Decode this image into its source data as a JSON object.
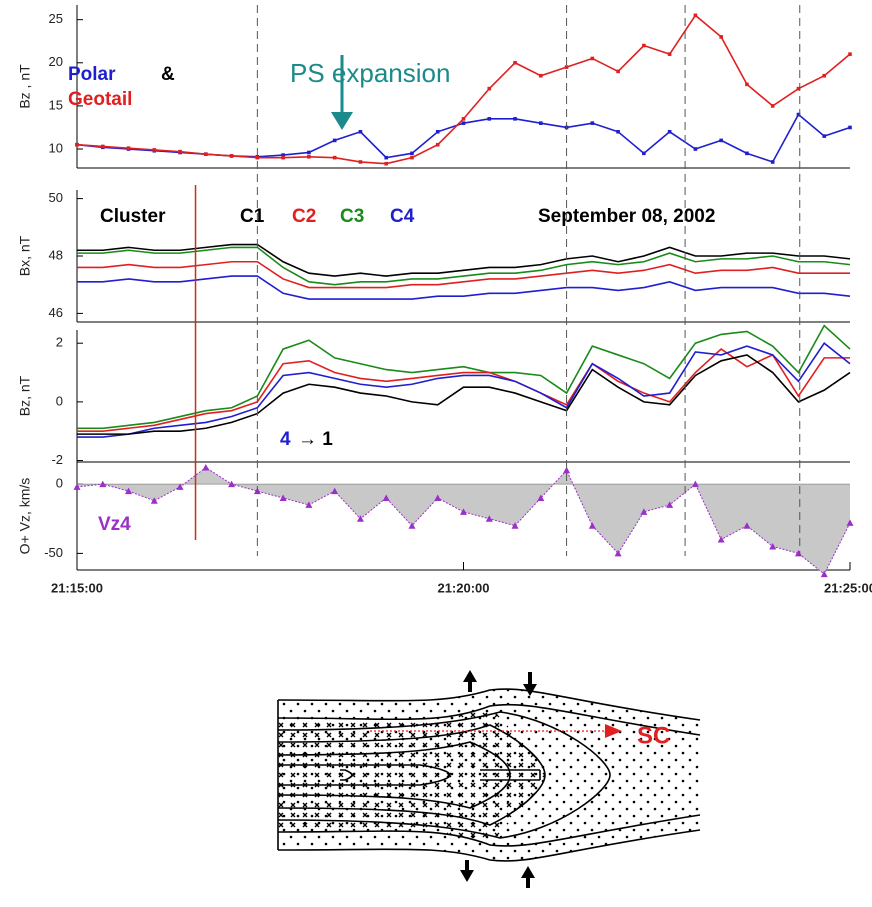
{
  "chart_data": [
    {
      "type": "line",
      "ylabel": "Bz , nT",
      "xlim": [
        "21:15:00",
        "21:25:00"
      ],
      "ylim": [
        7.8,
        26.7
      ],
      "yticks": [
        10,
        15,
        20,
        25
      ],
      "markers": true,
      "legend_joiner": "&",
      "annotations": [
        "PS expansion"
      ],
      "annotation_colors": [
        "#1a8a8a"
      ],
      "x": [
        "21:15:00",
        "21:15:20",
        "21:15:40",
        "21:16:00",
        "21:16:20",
        "21:16:40",
        "21:17:00",
        "21:17:20",
        "21:17:40",
        "21:18:00",
        "21:18:20",
        "21:18:40",
        "21:19:00",
        "21:19:20",
        "21:19:40",
        "21:20:00",
        "21:20:20",
        "21:20:40",
        "21:21:00",
        "21:21:20",
        "21:21:40",
        "21:22:00",
        "21:22:20",
        "21:22:40",
        "21:23:00",
        "21:23:20",
        "21:23:40",
        "21:24:00",
        "21:24:20",
        "21:24:40",
        "21:25:00"
      ],
      "series": [
        {
          "name": "Polar",
          "color": "#1f1fd0",
          "values": [
            10.5,
            10.2,
            10.0,
            9.8,
            9.6,
            9.4,
            9.2,
            9.1,
            9.3,
            9.6,
            11.0,
            12.0,
            9.0,
            9.5,
            12.0,
            13.0,
            13.5,
            13.5,
            13.0,
            12.5,
            13.0,
            12.0,
            9.5,
            12.0,
            10.0,
            11.0,
            9.5,
            8.5,
            14.0,
            11.5,
            12.5
          ]
        },
        {
          "name": "Geotail",
          "color": "#e02020",
          "values": [
            10.5,
            10.3,
            10.1,
            9.9,
            9.7,
            9.4,
            9.2,
            9.0,
            9.0,
            9.1,
            9.0,
            8.5,
            8.3,
            9.0,
            10.5,
            13.5,
            17.0,
            20.0,
            18.5,
            19.5,
            20.5,
            19.0,
            22.0,
            21.0,
            25.5,
            23.0,
            17.5,
            15.0,
            17.0,
            18.5,
            21.0
          ]
        }
      ]
    },
    {
      "type": "line",
      "ylabel": "Bx, nT",
      "xlim": [
        "21:15:00",
        "21:25:00"
      ],
      "ylim": [
        45.7,
        50.3
      ],
      "yticks": [
        46,
        48,
        50
      ],
      "annotations": [
        "Cluster",
        "September  08,  2002"
      ],
      "annotation_colors": [
        "#000000",
        "#000000"
      ],
      "x": [
        "21:15:00",
        "21:15:20",
        "21:15:40",
        "21:16:00",
        "21:16:20",
        "21:16:40",
        "21:17:00",
        "21:17:20",
        "21:17:40",
        "21:18:00",
        "21:18:20",
        "21:18:40",
        "21:19:00",
        "21:19:20",
        "21:19:40",
        "21:20:00",
        "21:20:20",
        "21:20:40",
        "21:21:00",
        "21:21:20",
        "21:21:40",
        "21:22:00",
        "21:22:20",
        "21:22:40",
        "21:23:00",
        "21:23:20",
        "21:23:40",
        "21:24:00",
        "21:24:20",
        "21:24:40",
        "21:25:00"
      ],
      "series": [
        {
          "name": "C1",
          "color": "#000000",
          "values": [
            48.2,
            48.2,
            48.3,
            48.2,
            48.2,
            48.3,
            48.4,
            48.4,
            47.8,
            47.4,
            47.3,
            47.4,
            47.3,
            47.4,
            47.4,
            47.5,
            47.6,
            47.6,
            47.7,
            47.9,
            48.0,
            47.8,
            48.0,
            48.3,
            48.0,
            48.0,
            48.1,
            48.1,
            48.0,
            48.0,
            47.9
          ]
        },
        {
          "name": "C2",
          "color": "#e02020",
          "values": [
            47.6,
            47.6,
            47.7,
            47.6,
            47.6,
            47.7,
            47.8,
            47.8,
            47.2,
            46.9,
            46.9,
            46.9,
            46.9,
            47.0,
            47.0,
            47.1,
            47.2,
            47.2,
            47.3,
            47.4,
            47.5,
            47.4,
            47.5,
            47.7,
            47.4,
            47.5,
            47.5,
            47.6,
            47.4,
            47.4,
            47.4
          ]
        },
        {
          "name": "C3",
          "color": "#1a8a1a",
          "values": [
            48.1,
            48.1,
            48.2,
            48.1,
            48.1,
            48.2,
            48.3,
            48.3,
            47.6,
            47.1,
            47.0,
            47.1,
            47.1,
            47.2,
            47.2,
            47.3,
            47.4,
            47.4,
            47.5,
            47.7,
            47.8,
            47.7,
            47.8,
            48.1,
            47.8,
            47.9,
            47.9,
            48.0,
            47.8,
            47.8,
            47.7
          ]
        },
        {
          "name": "C4",
          "color": "#1f1fd0",
          "values": [
            47.1,
            47.1,
            47.2,
            47.1,
            47.1,
            47.2,
            47.3,
            47.3,
            46.7,
            46.5,
            46.5,
            46.5,
            46.5,
            46.5,
            46.6,
            46.6,
            46.7,
            46.7,
            46.8,
            46.9,
            46.9,
            46.8,
            46.9,
            47.1,
            46.8,
            46.9,
            46.9,
            46.9,
            46.7,
            46.7,
            46.6
          ]
        }
      ]
    },
    {
      "type": "line",
      "ylabel": "Bz, nT",
      "xlim": [
        "21:15:00",
        "21:25:00"
      ],
      "ylim": [
        -2.05,
        2.45
      ],
      "yticks": [
        -2,
        0,
        2
      ],
      "annotations": [
        "4",
        "→ 1"
      ],
      "annotation_colors": [
        "#1f1fd0",
        "#000000"
      ],
      "x": [
        "21:15:00",
        "21:15:20",
        "21:15:40",
        "21:16:00",
        "21:16:20",
        "21:16:40",
        "21:17:00",
        "21:17:20",
        "21:17:40",
        "21:18:00",
        "21:18:20",
        "21:18:40",
        "21:19:00",
        "21:19:20",
        "21:19:40",
        "21:20:00",
        "21:20:20",
        "21:20:40",
        "21:21:00",
        "21:21:20",
        "21:21:40",
        "21:22:00",
        "21:22:20",
        "21:22:40",
        "21:23:00",
        "21:23:20",
        "21:23:40",
        "21:24:00",
        "21:24:20",
        "21:24:40",
        "21:25:00"
      ],
      "series": [
        {
          "name": "C3",
          "color": "#1a8a1a",
          "values": [
            -0.9,
            -0.9,
            -0.8,
            -0.7,
            -0.5,
            -0.3,
            -0.2,
            0.2,
            1.8,
            2.1,
            1.5,
            1.3,
            1.1,
            1.0,
            1.1,
            1.2,
            1.0,
            1.0,
            0.9,
            0.3,
            1.9,
            1.6,
            1.3,
            0.8,
            2.0,
            2.3,
            2.4,
            1.9,
            1.0,
            2.6,
            1.8
          ]
        },
        {
          "name": "C2",
          "color": "#e02020",
          "values": [
            -1.0,
            -1.0,
            -0.9,
            -0.8,
            -0.6,
            -0.4,
            -0.3,
            0.0,
            1.3,
            1.4,
            1.0,
            0.8,
            0.7,
            0.8,
            0.9,
            1.0,
            1.0,
            0.7,
            0.3,
            -0.1,
            1.3,
            0.7,
            0.3,
            0.0,
            1.0,
            1.8,
            1.2,
            1.6,
            0.2,
            1.5,
            1.5
          ]
        },
        {
          "name": "C4",
          "color": "#1f1fd0",
          "values": [
            -1.2,
            -1.2,
            -1.1,
            -0.9,
            -0.8,
            -0.7,
            -0.5,
            -0.2,
            0.9,
            1.0,
            0.8,
            0.6,
            0.5,
            0.6,
            0.8,
            0.9,
            0.9,
            0.7,
            0.3,
            -0.2,
            1.3,
            0.8,
            0.2,
            0.3,
            1.7,
            1.6,
            1.9,
            1.6,
            0.7,
            2.0,
            1.3
          ]
        },
        {
          "name": "C1",
          "color": "#000000",
          "values": [
            -1.1,
            -1.1,
            -1.1,
            -1.0,
            -1.0,
            -0.9,
            -0.7,
            -0.4,
            0.3,
            0.6,
            0.5,
            0.3,
            0.2,
            0.0,
            -0.1,
            0.5,
            0.5,
            0.3,
            0.0,
            -0.3,
            1.1,
            0.5,
            0.0,
            -0.1,
            0.9,
            1.4,
            1.6,
            1.0,
            0.0,
            0.4,
            1.0
          ]
        }
      ]
    },
    {
      "type": "area",
      "ylabel": "O+ Vz, km/s",
      "xlim": [
        "21:15:00",
        "21:25:00"
      ],
      "ylim": [
        -62,
        16
      ],
      "yticks": [
        -50,
        0
      ],
      "xticks": [
        "21:15:00",
        "21:20:00",
        "21:25:00"
      ],
      "markers": true,
      "fill": "#c8c8c8",
      "vlines": [
        "21:17:20",
        "21:21:20",
        "21:22:52",
        "21:24:21"
      ],
      "red_line": "21:16:32",
      "x": [
        "21:15:00",
        "21:15:20",
        "21:15:40",
        "21:16:00",
        "21:16:20",
        "21:16:40",
        "21:17:00",
        "21:17:20",
        "21:17:40",
        "21:18:00",
        "21:18:20",
        "21:18:40",
        "21:19:00",
        "21:19:20",
        "21:19:40",
        "21:20:00",
        "21:20:20",
        "21:20:40",
        "21:21:00",
        "21:21:20",
        "21:21:40",
        "21:22:00",
        "21:22:20",
        "21:22:40",
        "21:23:00",
        "21:23:20",
        "21:23:40",
        "21:24:00",
        "21:24:20",
        "21:24:40",
        "21:25:00"
      ],
      "series": [
        {
          "name": "Vz4",
          "color": "#9a30c8",
          "values": [
            -2,
            0,
            -5,
            -12,
            -2,
            12,
            0,
            -5,
            -10,
            -15,
            -5,
            -25,
            -10,
            -30,
            -10,
            -20,
            -25,
            -30,
            -10,
            10,
            -30,
            -50,
            -20,
            -15,
            0,
            -40,
            -30,
            -45,
            -50,
            -65,
            -28
          ]
        }
      ]
    }
  ],
  "diagram": {
    "label": "SC"
  }
}
